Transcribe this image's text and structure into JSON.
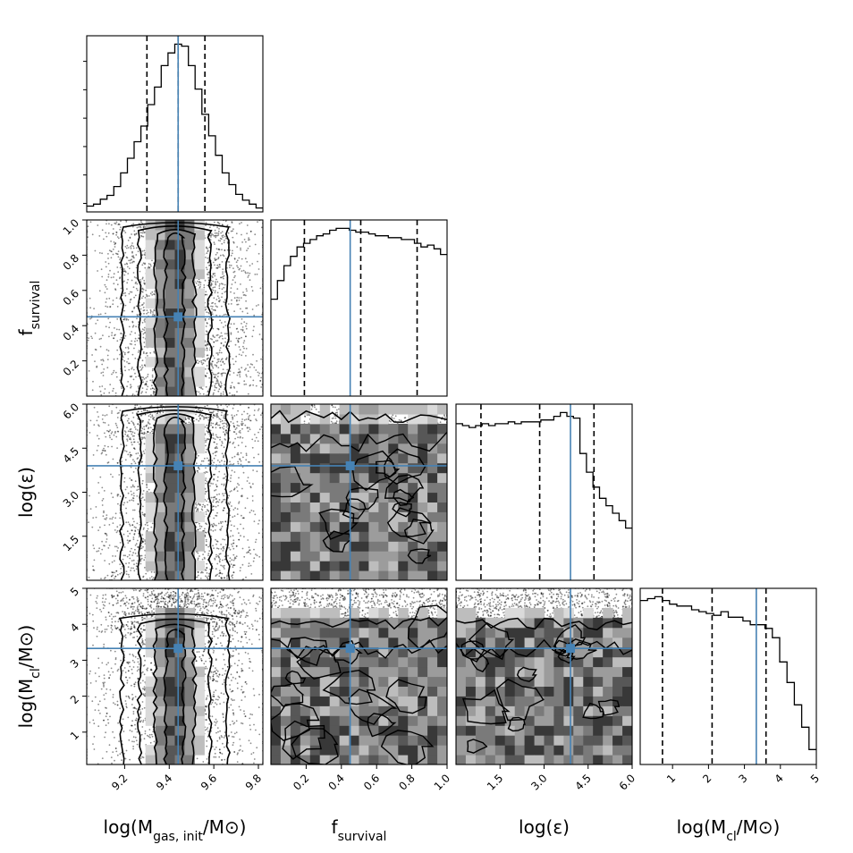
{
  "chart_data": {
    "type": "corner",
    "parameters": [
      {
        "key": "mgas",
        "label_base": "log(M",
        "label_sub": "gas, init",
        "label_tail": "/M⊙)",
        "range": [
          9.03,
          9.82
        ],
        "ticks": [
          9.2,
          9.4,
          9.6,
          9.8
        ],
        "tick_labels": [
          "9.2",
          "9.4",
          "9.6",
          "9.8"
        ],
        "truth": 9.44,
        "quantiles": [
          9.3,
          9.44,
          9.56
        ],
        "hist": [
          6,
          8,
          13,
          17,
          26,
          40,
          55,
          72,
          88,
          110,
          128,
          150,
          163,
          172,
          170,
          150,
          126,
          100,
          78,
          58,
          40,
          28,
          18,
          12,
          8,
          4
        ]
      },
      {
        "key": "fsurv",
        "label_base": "f",
        "label_sub": "survival",
        "label_tail": "",
        "range": [
          0.0,
          1.0
        ],
        "ticks": [
          0.2,
          0.4,
          0.6,
          0.8,
          1.0
        ],
        "tick_labels": [
          "0.2",
          "0.4",
          "0.6",
          "0.8",
          "1.0"
        ],
        "truth": 0.45,
        "quantiles": [
          0.19,
          0.51,
          0.83
        ],
        "hist": [
          52,
          62,
          70,
          75,
          80,
          82,
          84,
          86,
          87,
          89,
          90,
          90,
          89,
          88,
          88,
          87,
          86,
          86,
          85,
          85,
          84,
          84,
          82,
          80,
          81,
          79,
          76
        ]
      },
      {
        "key": "eps",
        "label_base": "log(ε)",
        "label_sub": "",
        "label_tail": "",
        "range": [
          0.0,
          6.0
        ],
        "ticks": [
          1.5,
          3.0,
          4.5,
          6.0
        ],
        "tick_labels": [
          "1.5",
          "3.0",
          "4.5",
          "6.0"
        ],
        "truth": 3.9,
        "quantiles": [
          0.85,
          2.85,
          4.7
        ],
        "hist": [
          84,
          83,
          82,
          83,
          84,
          83,
          84,
          84,
          85,
          84,
          85,
          85,
          85,
          86,
          86,
          88,
          90,
          88,
          87,
          68,
          58,
          50,
          44,
          40,
          36,
          32,
          28
        ]
      },
      {
        "key": "mcl",
        "label_base": "log(M",
        "label_sub": "cl",
        "label_tail": "/M⊙)",
        "range": [
          0.1,
          5.0
        ],
        "ticks": [
          1,
          2,
          3,
          4,
          5
        ],
        "tick_labels": [
          "1",
          "2",
          "3",
          "4",
          "5"
        ],
        "truth": 3.33,
        "quantiles": [
          0.72,
          2.1,
          3.6
        ],
        "hist": [
          88,
          89,
          90,
          88,
          86,
          85,
          85,
          83,
          82,
          81,
          80,
          82,
          79,
          79,
          77,
          75,
          75,
          73,
          68,
          55,
          44,
          32,
          20,
          8
        ]
      }
    ],
    "y_axes": [
      {
        "row": 1,
        "label_base": "f",
        "label_sub": "survival",
        "label_tail": "",
        "ticks": [
          0.2,
          0.4,
          0.6,
          0.8,
          1.0
        ],
        "tick_labels": [
          "0.2",
          "0.4",
          "0.6",
          "0.8",
          "1.0"
        ]
      },
      {
        "row": 2,
        "label_base": "log(ε)",
        "label_sub": "",
        "label_tail": "",
        "ticks": [
          1.5,
          3.0,
          4.5,
          6.0
        ],
        "tick_labels": [
          "1.5",
          "3.0",
          "4.5",
          "6.0"
        ]
      },
      {
        "row": 3,
        "label_base": "log(M",
        "label_sub": "cl",
        "label_tail": "/M⊙)",
        "ticks": [
          1,
          2,
          3,
          4,
          5
        ],
        "tick_labels": [
          "1",
          "2",
          "3",
          "4",
          "5"
        ]
      }
    ],
    "truth_color": "#4682b4",
    "grid": false,
    "legend": "none"
  }
}
